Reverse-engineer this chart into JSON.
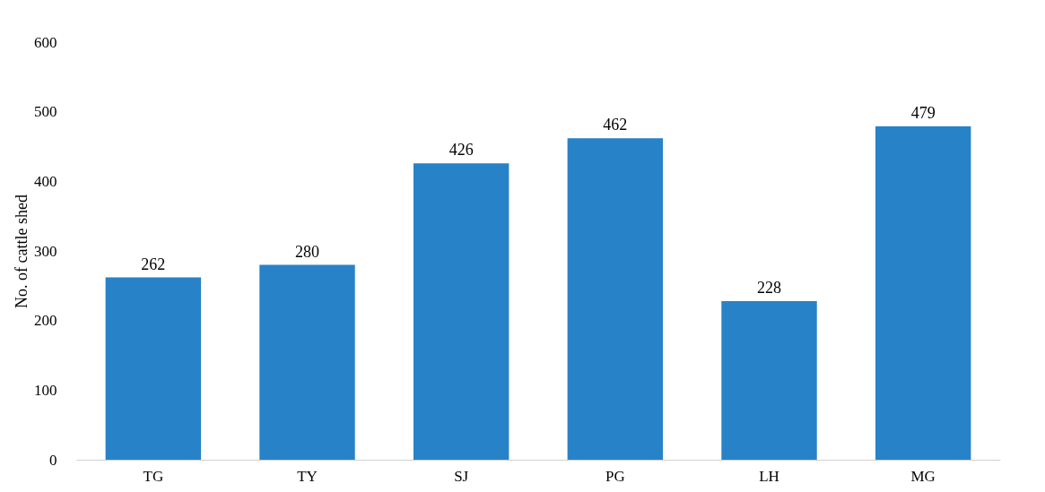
{
  "chart_data": {
    "type": "bar",
    "ylabel": "No. of cattle shed",
    "categories": [
      "TG",
      "TY",
      "SJ",
      "PG",
      "LH",
      "MG"
    ],
    "values": [
      262,
      280,
      426,
      462,
      228,
      479
    ],
    "color": "#2882c8",
    "ylim": [
      0,
      600
    ],
    "yticks": [
      0,
      100,
      200,
      300,
      400,
      500,
      600
    ],
    "grid": false,
    "data_labels": true
  }
}
